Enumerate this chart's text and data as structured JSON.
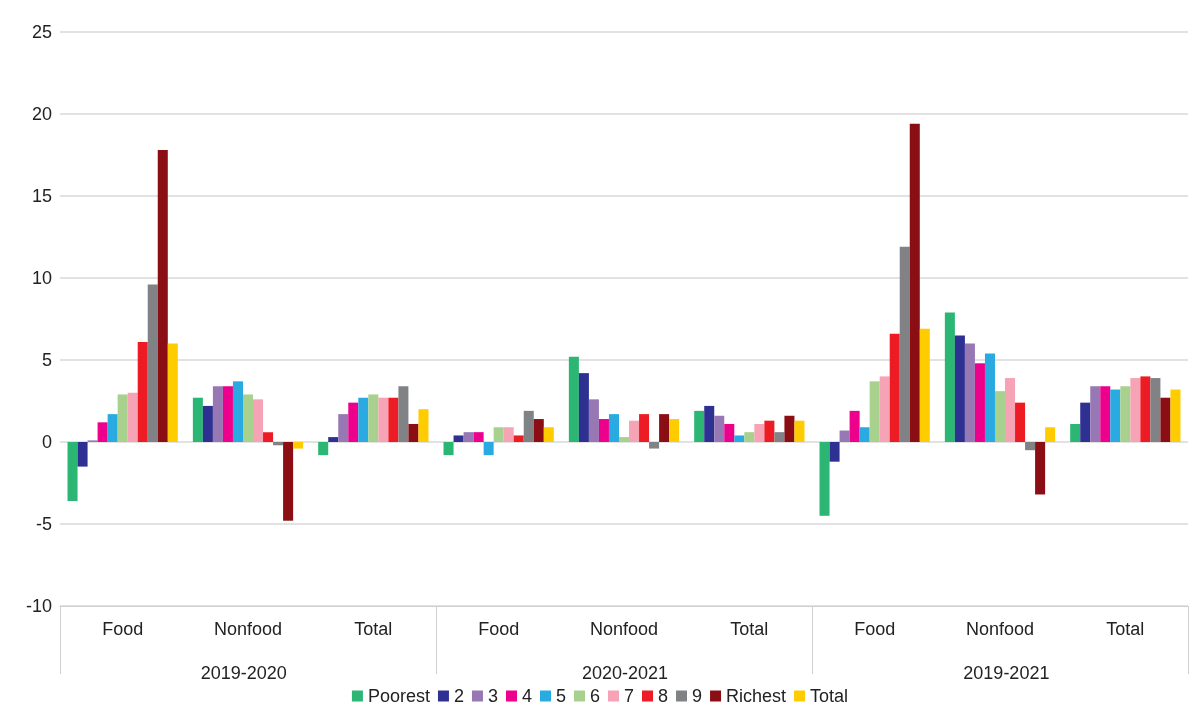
{
  "chart_data": {
    "type": "bar",
    "categories": [
      "Food",
      "Nonfood",
      "Total",
      "Food",
      "Nonfood",
      "Total",
      "Food",
      "Nonfood",
      "Total"
    ],
    "series": [
      {
        "name": "Poorest",
        "color": "#2bb673",
        "values": [
          -3.6,
          2.7,
          -0.8,
          -0.8,
          5.2,
          1.9,
          -4.5,
          7.9,
          1.1
        ]
      },
      {
        "name": "2",
        "color": "#2e3192",
        "values": [
          -1.5,
          2.2,
          0.3,
          0.4,
          4.2,
          2.2,
          -1.2,
          6.5,
          2.4
        ]
      },
      {
        "name": "3",
        "color": "#9778b5",
        "values": [
          0.1,
          3.4,
          1.7,
          0.6,
          2.6,
          1.6,
          0.7,
          6.0,
          3.4
        ]
      },
      {
        "name": "4",
        "color": "#ec008c",
        "values": [
          1.2,
          3.4,
          2.4,
          0.6,
          1.4,
          1.1,
          1.9,
          4.8,
          3.4
        ]
      },
      {
        "name": "5",
        "color": "#29abe2",
        "values": [
          1.7,
          3.7,
          2.7,
          -0.8,
          1.7,
          0.4,
          0.9,
          5.4,
          3.2
        ]
      },
      {
        "name": "6",
        "color": "#a9d18e",
        "values": [
          2.9,
          2.9,
          2.9,
          0.9,
          0.3,
          0.6,
          3.7,
          3.1,
          3.4
        ]
      },
      {
        "name": "7",
        "color": "#f5a3b5",
        "values": [
          3.0,
          2.6,
          2.7,
          0.9,
          1.3,
          1.1,
          4.0,
          3.9,
          3.9
        ]
      },
      {
        "name": "8",
        "color": "#ed1c24",
        "values": [
          6.1,
          0.6,
          2.7,
          0.4,
          1.7,
          1.3,
          6.6,
          2.4,
          4.0
        ]
      },
      {
        "name": "9",
        "color": "#808285",
        "values": [
          9.6,
          -0.2,
          3.4,
          1.9,
          -0.4,
          0.6,
          11.9,
          -0.5,
          3.9
        ]
      },
      {
        "name": "Richest",
        "color": "#8b0e14",
        "values": [
          17.8,
          -4.8,
          1.1,
          1.4,
          1.7,
          1.6,
          19.4,
          -3.2,
          2.7
        ]
      },
      {
        "name": "Total",
        "color": "#ffcc00",
        "values": [
          6.0,
          -0.4,
          2.0,
          0.9,
          1.4,
          1.3,
          6.9,
          0.9,
          3.2
        ]
      }
    ],
    "annotations": [
      "2019-2020",
      "2020-2021",
      "2019-2021"
    ],
    "ylim": [
      -10,
      25
    ],
    "yticks": [
      -10,
      -5,
      0,
      5,
      10,
      15,
      20,
      25
    ],
    "grid": "y",
    "legend": "bottom"
  }
}
